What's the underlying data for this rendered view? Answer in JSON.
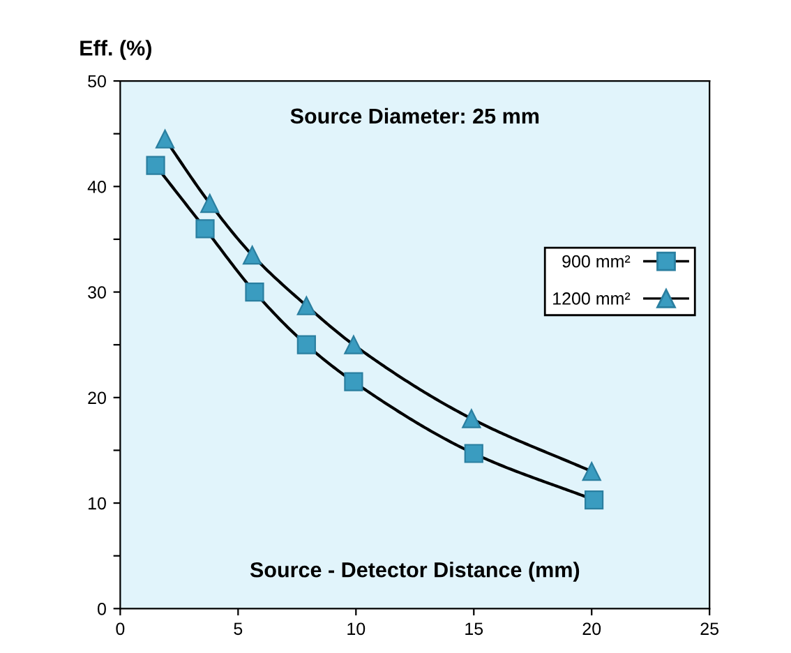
{
  "chart_data": {
    "type": "line",
    "title": "Source Diameter: 25 mm",
    "xlabel": "Source - Detector Distance (mm)",
    "ylabel": "Eff. (%)",
    "series": [
      {
        "name": "900 mm²",
        "color": "#3a9cc0",
        "marker": "square",
        "x": [
          1.5,
          3.6,
          5.7,
          7.9,
          9.9,
          15,
          20.1
        ],
        "values": [
          42,
          36,
          30,
          25,
          21.5,
          14.7,
          10.3
        ]
      },
      {
        "name": "1200 mm²",
        "color": "#3a9cc0",
        "marker": "triangle",
        "x": [
          1.9,
          3.8,
          5.6,
          7.9,
          9.9,
          14.9,
          20
        ],
        "values": [
          44.5,
          38.4,
          33.5,
          28.7,
          25,
          18,
          13
        ]
      }
    ],
    "xlim": [
      0,
      25
    ],
    "xticks": [
      0,
      5,
      10,
      15,
      20,
      25
    ],
    "ylim": [
      0,
      50
    ],
    "yticks": [
      0,
      {
        "value": 5,
        "label": null
      },
      10,
      {
        "value": 15,
        "label": null
      },
      20,
      {
        "value": 25,
        "label": null
      },
      30,
      {
        "value": 35,
        "label": null
      },
      40,
      {
        "value": 45,
        "label": null
      },
      50
    ],
    "legend": "right",
    "grid": false,
    "line_style": "solid"
  }
}
